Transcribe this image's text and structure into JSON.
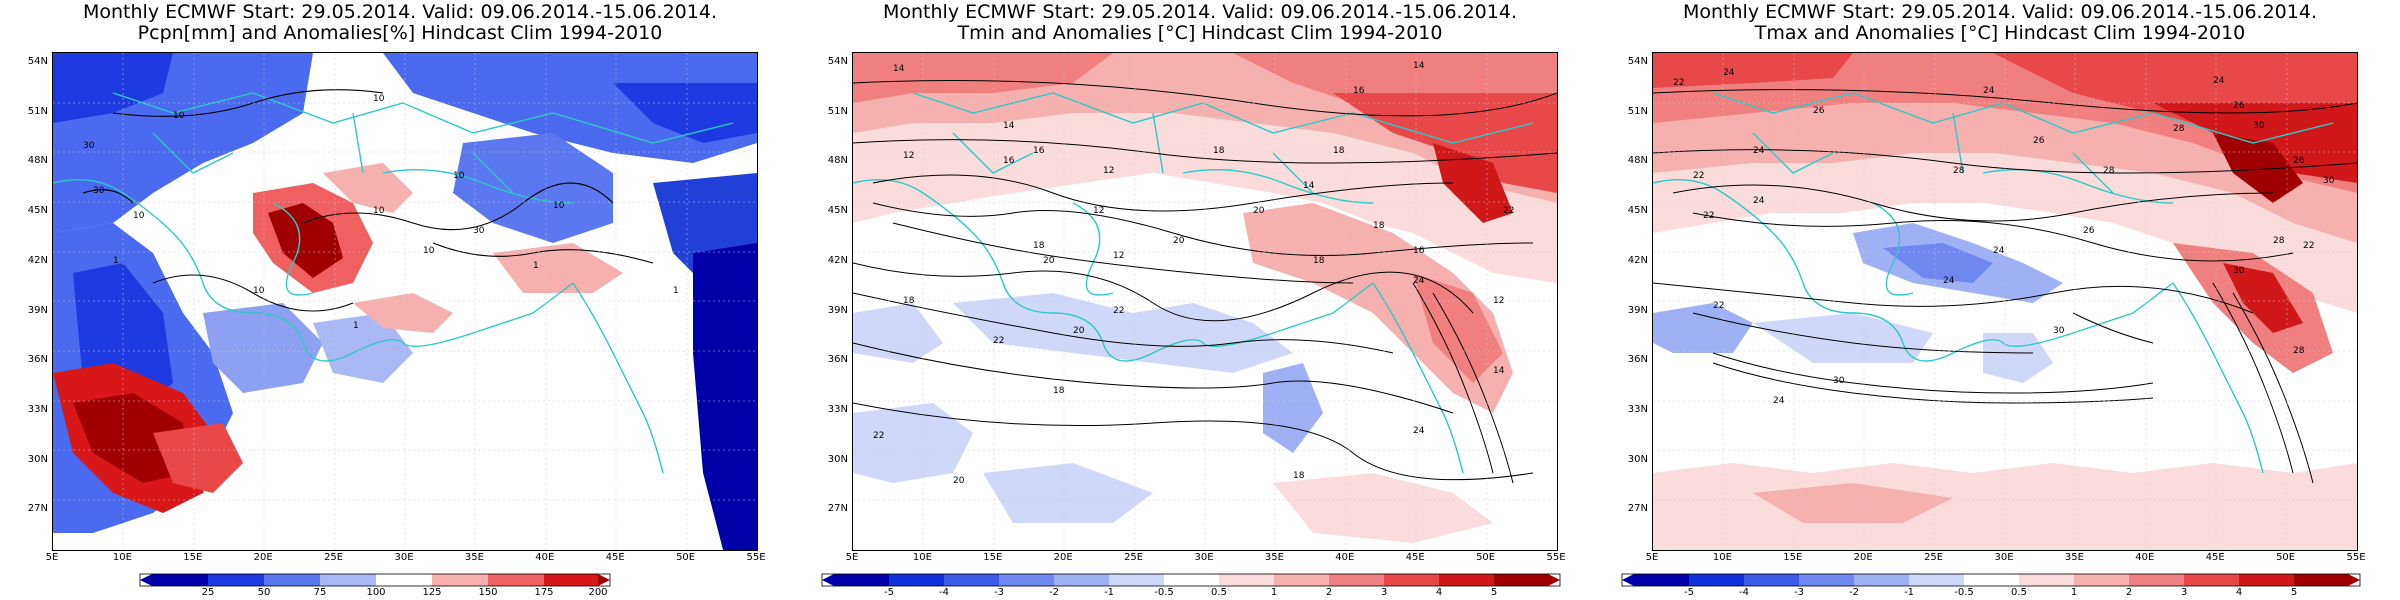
{
  "panels": [
    {
      "id": "pcpn",
      "title1": "Monthly ECMWF Start: 29.05.2014. Valid: 09.06.2014.-15.06.2014.",
      "title2": "Pcpn[mm] and Anomalies[%] Hindcast Clim 1994-2010",
      "colorbar": {
        "labels": [
          "25",
          "50",
          "75",
          "100",
          "125",
          "150",
          "175",
          "200"
        ],
        "colors": [
          "#0000a8",
          "#1c3ae0",
          "#5a78f0",
          "#aab8f6",
          "#ffffff",
          "#f6b0b0",
          "#f06060",
          "#d81818",
          "#a00000"
        ]
      }
    },
    {
      "id": "tmin",
      "title1": "Monthly ECMWF Start: 29.05.2014. Valid: 09.06.2014.-15.06.2014.",
      "title2": "Tmin and Anomalies [°C] Hindcast Clim 1994-2010",
      "colorbar": {
        "labels": [
          "-5",
          "-4",
          "-3",
          "-2",
          "-1",
          "-0.5",
          "0.5",
          "1",
          "2",
          "3",
          "4",
          "5"
        ],
        "colors": [
          "#0000a8",
          "#1030d8",
          "#3c5ce8",
          "#6e88f0",
          "#a0b0f4",
          "#d0d8fa",
          "#ffffff",
          "#fadcdc",
          "#f6b0b0",
          "#f08080",
          "#e84848",
          "#d01818",
          "#a00000"
        ]
      }
    },
    {
      "id": "tmax",
      "title1": "Monthly ECMWF Start: 29.05.2014. Valid: 09.06.2014.-15.06.2014.",
      "title2": "Tmax and Anomalies [°C] Hindcast Clim 1994-2010",
      "colorbar": {
        "labels": [
          "-5",
          "-4",
          "-3",
          "-2",
          "-1",
          "-0.5",
          "0.5",
          "1",
          "2",
          "3",
          "4",
          "5"
        ],
        "colors": [
          "#0000a8",
          "#1030d8",
          "#3c5ce8",
          "#6e88f0",
          "#a0b0f4",
          "#d0d8fa",
          "#ffffff",
          "#fadcdc",
          "#f6b0b0",
          "#f08080",
          "#e84848",
          "#d01818",
          "#a00000"
        ]
      }
    }
  ],
  "lat_labels": [
    "54N",
    "51N",
    "48N",
    "45N",
    "42N",
    "39N",
    "36N",
    "33N",
    "30N",
    "27N"
  ],
  "lon_labels": [
    "5E",
    "10E",
    "15E",
    "20E",
    "25E",
    "30E",
    "35E",
    "40E",
    "45E",
    "50E",
    "55E"
  ],
  "contour_labels": {
    "pcpn": [
      "10",
      "30",
      "10",
      "10",
      "10",
      "30",
      "10",
      "10",
      "30",
      "1",
      "10",
      "1",
      "1",
      "10",
      "1"
    ],
    "tmin": [
      "14",
      "14",
      "16",
      "12",
      "14",
      "16",
      "12",
      "18",
      "18",
      "14",
      "12",
      "20",
      "20",
      "18",
      "16",
      "22",
      "12",
      "20",
      "18",
      "18",
      "16",
      "24",
      "12",
      "22",
      "18",
      "20",
      "22",
      "14",
      "18",
      "24",
      "22",
      "20",
      "18"
    ],
    "tmax": [
      "24",
      "22",
      "24",
      "26",
      "26",
      "24",
      "28",
      "30",
      "26",
      "28",
      "22",
      "28",
      "24",
      "26",
      "30",
      "22",
      "24",
      "26",
      "28",
      "30",
      "22",
      "24",
      "24",
      "28",
      "30",
      "22",
      "30",
      "24"
    ]
  }
}
